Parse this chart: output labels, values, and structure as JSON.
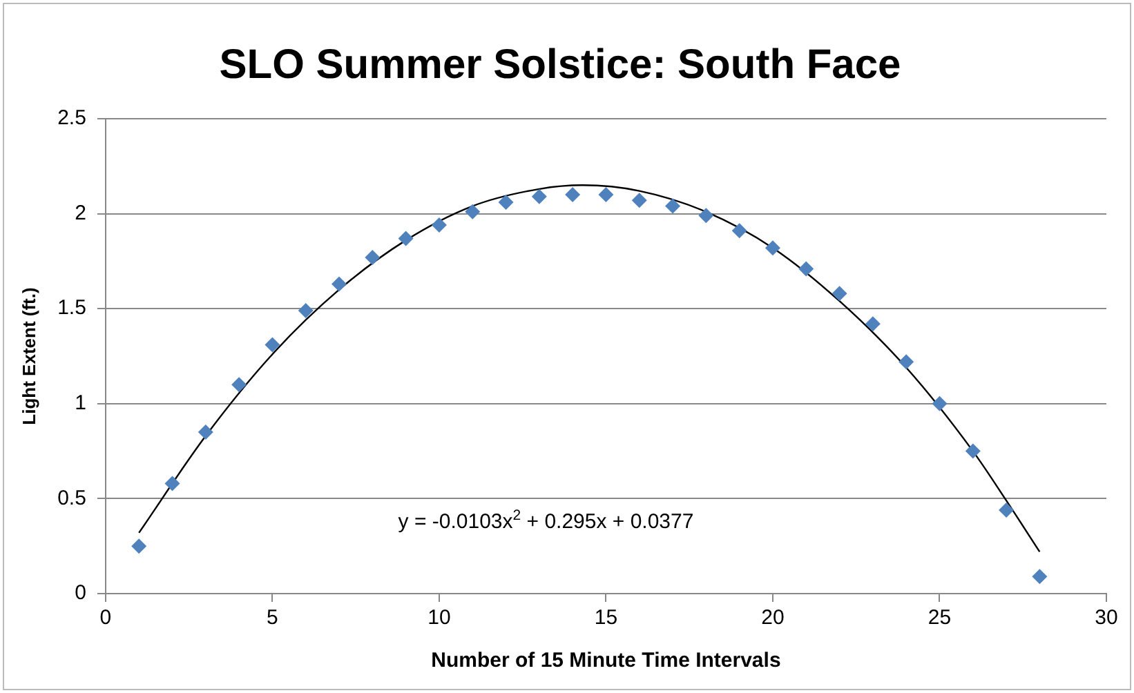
{
  "chart_data": {
    "type": "scatter",
    "title": "SLO Summer Solstice: South Face",
    "xlabel": "Number of 15 Minute Time Intervals",
    "ylabel": "Light Extent (ft.)",
    "x": [
      1,
      2,
      3,
      4,
      5,
      6,
      7,
      8,
      9,
      10,
      11,
      12,
      13,
      14,
      15,
      16,
      17,
      18,
      19,
      20,
      21,
      22,
      23,
      24,
      25,
      26,
      27,
      28
    ],
    "series": [
      {
        "color": "#4f81bd",
        "marker": "diamond",
        "values": [
          0.25,
          0.58,
          0.85,
          1.1,
          1.31,
          1.49,
          1.63,
          1.77,
          1.87,
          1.94,
          2.01,
          2.06,
          2.09,
          2.1,
          2.1,
          2.07,
          2.04,
          1.99,
          1.91,
          1.82,
          1.71,
          1.58,
          1.42,
          1.22,
          1.0,
          0.75,
          0.44,
          0.09
        ]
      },
      {
        "type": "line",
        "color": "#000000",
        "marker": "none",
        "x": [
          1,
          3,
          5,
          7,
          9,
          11,
          13,
          14.3,
          16,
          18,
          20,
          22,
          24,
          26,
          27,
          28
        ],
        "values": [
          0.32,
          0.83,
          1.26,
          1.6,
          1.86,
          2.04,
          2.13,
          2.15,
          2.12,
          2.01,
          1.82,
          1.54,
          1.19,
          0.75,
          0.49,
          0.22
        ]
      }
    ],
    "annotations": [
      "y = -0.0103x$^{2}$ + 0.295x + 0.0377"
    ],
    "xlim": [
      0,
      30
    ],
    "xticks": [
      0,
      5,
      10,
      15,
      20,
      25,
      30
    ],
    "ylim": [
      0,
      2.5
    ],
    "yticks": [
      0,
      0.5,
      1,
      1.5,
      2,
      2.5
    ],
    "grid": "y",
    "legend": false
  }
}
